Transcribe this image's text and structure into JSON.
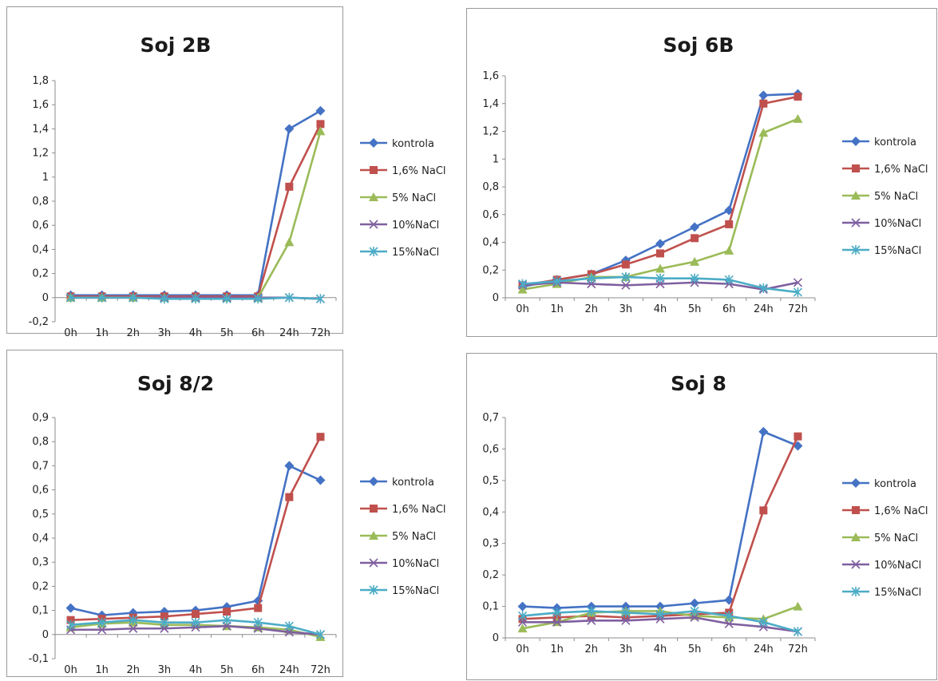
{
  "colors": {
    "kontrola": "#4472c4",
    "nacl_1_6": "#c0504d",
    "nacl_5": "#9bbb59",
    "nacl_10": "#7f5f9f",
    "nacl_15": "#4bacc6"
  },
  "legend": [
    "kontrola",
    "1,6% NaCl",
    "5% NaCl",
    "10%NaCl",
    "15%NaCl"
  ],
  "chart_data": [
    {
      "type": "line",
      "title": "Soj 2B",
      "categories": [
        "0h",
        "1h",
        "2h",
        "3h",
        "4h",
        "5h",
        "6h",
        "24h",
        "72h"
      ],
      "ylim": [
        -0.2,
        1.8
      ],
      "yticks": [
        "-0,2",
        "0",
        "0,2",
        "0,4",
        "0,6",
        "0,8",
        "1",
        "1,2",
        "1,4",
        "1,6",
        "1,8"
      ],
      "grid": false,
      "legend_position": "right",
      "series": [
        {
          "name": "kontrola",
          "marker": "diamond",
          "values": [
            0.02,
            0.02,
            0.02,
            0.02,
            0.02,
            0.02,
            0.02,
            1.4,
            1.55
          ]
        },
        {
          "name": "1,6% NaCl",
          "marker": "square",
          "values": [
            0.01,
            0.01,
            0.01,
            0.01,
            0.01,
            0.01,
            0.01,
            0.92,
            1.44
          ]
        },
        {
          "name": "5% NaCl",
          "marker": "triangle",
          "values": [
            0.0,
            0.0,
            0.0,
            0.0,
            0.0,
            0.0,
            0.0,
            0.46,
            1.38
          ]
        },
        {
          "name": "10%NaCl",
          "marker": "x",
          "values": [
            0.0,
            0.0,
            0.0,
            0.0,
            0.0,
            0.0,
            0.0,
            0.0,
            -0.01
          ]
        },
        {
          "name": "15%NaCl",
          "marker": "star",
          "values": [
            0.0,
            0.0,
            0.0,
            -0.01,
            -0.01,
            -0.01,
            -0.01,
            0.0,
            -0.01
          ]
        }
      ]
    },
    {
      "type": "line",
      "title": "Soj 6B",
      "categories": [
        "0h",
        "1h",
        "2h",
        "3h",
        "4h",
        "5h",
        "6h",
        "24h",
        "72h"
      ],
      "ylim": [
        0,
        1.6
      ],
      "yticks": [
        "0",
        "0,2",
        "0,4",
        "0,6",
        "0,8",
        "1",
        "1,2",
        "1,4",
        "1,6"
      ],
      "grid": false,
      "legend_position": "right",
      "series": [
        {
          "name": "kontrola",
          "marker": "diamond",
          "values": [
            0.08,
            0.13,
            0.17,
            0.27,
            0.39,
            0.51,
            0.63,
            1.46,
            1.47
          ]
        },
        {
          "name": "1,6% NaCl",
          "marker": "square",
          "values": [
            0.09,
            0.13,
            0.17,
            0.24,
            0.32,
            0.43,
            0.53,
            1.4,
            1.45
          ]
        },
        {
          "name": "5% NaCl",
          "marker": "triangle",
          "values": [
            0.06,
            0.1,
            0.15,
            0.15,
            0.21,
            0.26,
            0.34,
            1.19,
            1.29
          ]
        },
        {
          "name": "10%NaCl",
          "marker": "x",
          "values": [
            0.09,
            0.11,
            0.1,
            0.09,
            0.1,
            0.11,
            0.1,
            0.06,
            0.11
          ]
        },
        {
          "name": "15%NaCl",
          "marker": "star",
          "values": [
            0.1,
            0.12,
            0.14,
            0.15,
            0.14,
            0.14,
            0.13,
            0.07,
            0.04
          ]
        }
      ]
    },
    {
      "type": "line",
      "title": "Soj 8/2",
      "categories": [
        "0h",
        "1h",
        "2h",
        "3h",
        "4h",
        "5h",
        "6h",
        "24h",
        "72h"
      ],
      "ylim": [
        -0.1,
        0.9
      ],
      "yticks": [
        "-0,1",
        "0",
        "0,1",
        "0,2",
        "0,3",
        "0,4",
        "0,5",
        "0,6",
        "0,7",
        "0,8",
        "0,9"
      ],
      "grid": false,
      "legend_position": "right",
      "series": [
        {
          "name": "kontrola",
          "marker": "diamond",
          "values": [
            0.11,
            0.08,
            0.09,
            0.095,
            0.1,
            0.115,
            0.14,
            0.7,
            0.64
          ]
        },
        {
          "name": "1,6% NaCl",
          "marker": "square",
          "values": [
            0.06,
            0.065,
            0.07,
            0.075,
            0.085,
            0.095,
            0.11,
            0.57,
            0.82
          ]
        },
        {
          "name": "5% NaCl",
          "marker": "triangle",
          "values": [
            0.03,
            0.045,
            0.05,
            0.04,
            0.04,
            0.035,
            0.03,
            0.02,
            -0.01
          ]
        },
        {
          "name": "10%NaCl",
          "marker": "x",
          "values": [
            0.02,
            0.02,
            0.025,
            0.025,
            0.03,
            0.035,
            0.025,
            0.01,
            0.0
          ]
        },
        {
          "name": "15%NaCl",
          "marker": "star",
          "values": [
            0.04,
            0.05,
            0.06,
            0.05,
            0.05,
            0.06,
            0.05,
            0.035,
            0.0
          ]
        }
      ]
    },
    {
      "type": "line",
      "title": "Soj 8",
      "categories": [
        "0h",
        "1h",
        "2h",
        "3h",
        "4h",
        "5h",
        "6h",
        "24h",
        "72h"
      ],
      "ylim": [
        0,
        0.7
      ],
      "yticks": [
        "0",
        "0,1",
        "0,2",
        "0,3",
        "0,4",
        "0,5",
        "0,6",
        "0,7"
      ],
      "grid": false,
      "legend_position": "right",
      "series": [
        {
          "name": "kontrola",
          "marker": "diamond",
          "values": [
            0.1,
            0.095,
            0.1,
            0.1,
            0.1,
            0.11,
            0.12,
            0.655,
            0.61
          ]
        },
        {
          "name": "1,6% NaCl",
          "marker": "square",
          "values": [
            0.06,
            0.065,
            0.07,
            0.065,
            0.07,
            0.075,
            0.08,
            0.405,
            0.64
          ]
        },
        {
          "name": "5% NaCl",
          "marker": "triangle",
          "values": [
            0.03,
            0.05,
            0.08,
            0.085,
            0.085,
            0.07,
            0.065,
            0.06,
            0.1
          ]
        },
        {
          "name": "10%NaCl",
          "marker": "x",
          "values": [
            0.05,
            0.05,
            0.055,
            0.055,
            0.06,
            0.065,
            0.045,
            0.035,
            0.02
          ]
        },
        {
          "name": "15%NaCl",
          "marker": "star",
          "values": [
            0.07,
            0.08,
            0.085,
            0.08,
            0.075,
            0.085,
            0.07,
            0.05,
            0.02
          ]
        }
      ]
    }
  ]
}
